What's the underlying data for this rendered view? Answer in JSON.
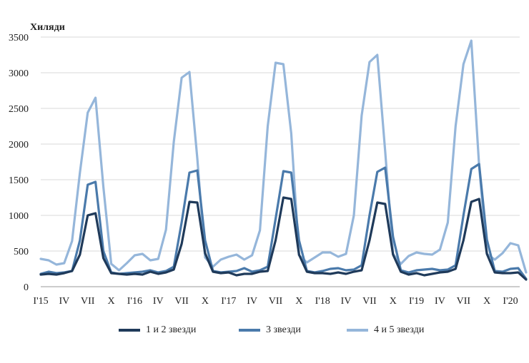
{
  "chart_data": {
    "type": "line",
    "ylabel": "Хиляди",
    "ylim": [
      0,
      3500
    ],
    "yticks": [
      0,
      500,
      1000,
      1500,
      2000,
      2500,
      3000,
      3500
    ],
    "grid": "horizontal",
    "legend_position": "bottom",
    "x_tick_labels": [
      "I'15",
      "IV",
      "VII",
      "X",
      "I'16",
      "IV",
      "VII",
      "X",
      "I'17",
      "IV",
      "VII",
      "X",
      "I'18",
      "IV",
      "VII",
      "X",
      "I'19",
      "IV",
      "VII",
      "X",
      "I'20"
    ],
    "period": {
      "first": "2015-01",
      "last": "2020-03",
      "frequency": "monthly"
    },
    "series": [
      {
        "name": "1 и 2 звезди",
        "color": "#1f3a5a",
        "values": [
          170,
          180,
          170,
          190,
          220,
          450,
          1000,
          1030,
          400,
          190,
          180,
          170,
          180,
          170,
          210,
          180,
          200,
          240,
          600,
          1190,
          1180,
          470,
          210,
          190,
          200,
          160,
          180,
          180,
          210,
          220,
          650,
          1250,
          1230,
          450,
          210,
          190,
          190,
          180,
          200,
          180,
          210,
          230,
          650,
          1180,
          1160,
          450,
          210,
          170,
          190,
          160,
          180,
          200,
          210,
          250,
          650,
          1190,
          1230,
          460,
          200,
          190,
          190,
          200,
          100
        ]
      },
      {
        "name": "3 звезди",
        "color": "#4a7aab",
        "values": [
          180,
          210,
          190,
          200,
          220,
          650,
          1430,
          1470,
          500,
          200,
          180,
          190,
          200,
          210,
          230,
          200,
          220,
          280,
          900,
          1600,
          1630,
          650,
          220,
          200,
          210,
          220,
          260,
          210,
          230,
          280,
          950,
          1620,
          1600,
          650,
          220,
          200,
          220,
          250,
          260,
          230,
          240,
          300,
          1000,
          1610,
          1670,
          700,
          230,
          200,
          230,
          240,
          250,
          230,
          240,
          300,
          1000,
          1650,
          1720,
          660,
          220,
          210,
          250,
          260,
          110
        ]
      },
      {
        "name": "4 и 5 звезди",
        "color": "#95b6da",
        "values": [
          390,
          370,
          310,
          330,
          640,
          1600,
          2440,
          2650,
          1400,
          320,
          230,
          330,
          440,
          460,
          370,
          390,
          800,
          2030,
          2930,
          3010,
          1800,
          410,
          280,
          380,
          420,
          450,
          380,
          440,
          790,
          2250,
          3140,
          3120,
          2150,
          440,
          340,
          410,
          480,
          480,
          420,
          460,
          1000,
          2400,
          3150,
          3250,
          1900,
          460,
          320,
          430,
          480,
          460,
          450,
          520,
          900,
          2250,
          3120,
          3450,
          1700,
          460,
          380,
          470,
          610,
          580,
          200
        ]
      }
    ]
  }
}
